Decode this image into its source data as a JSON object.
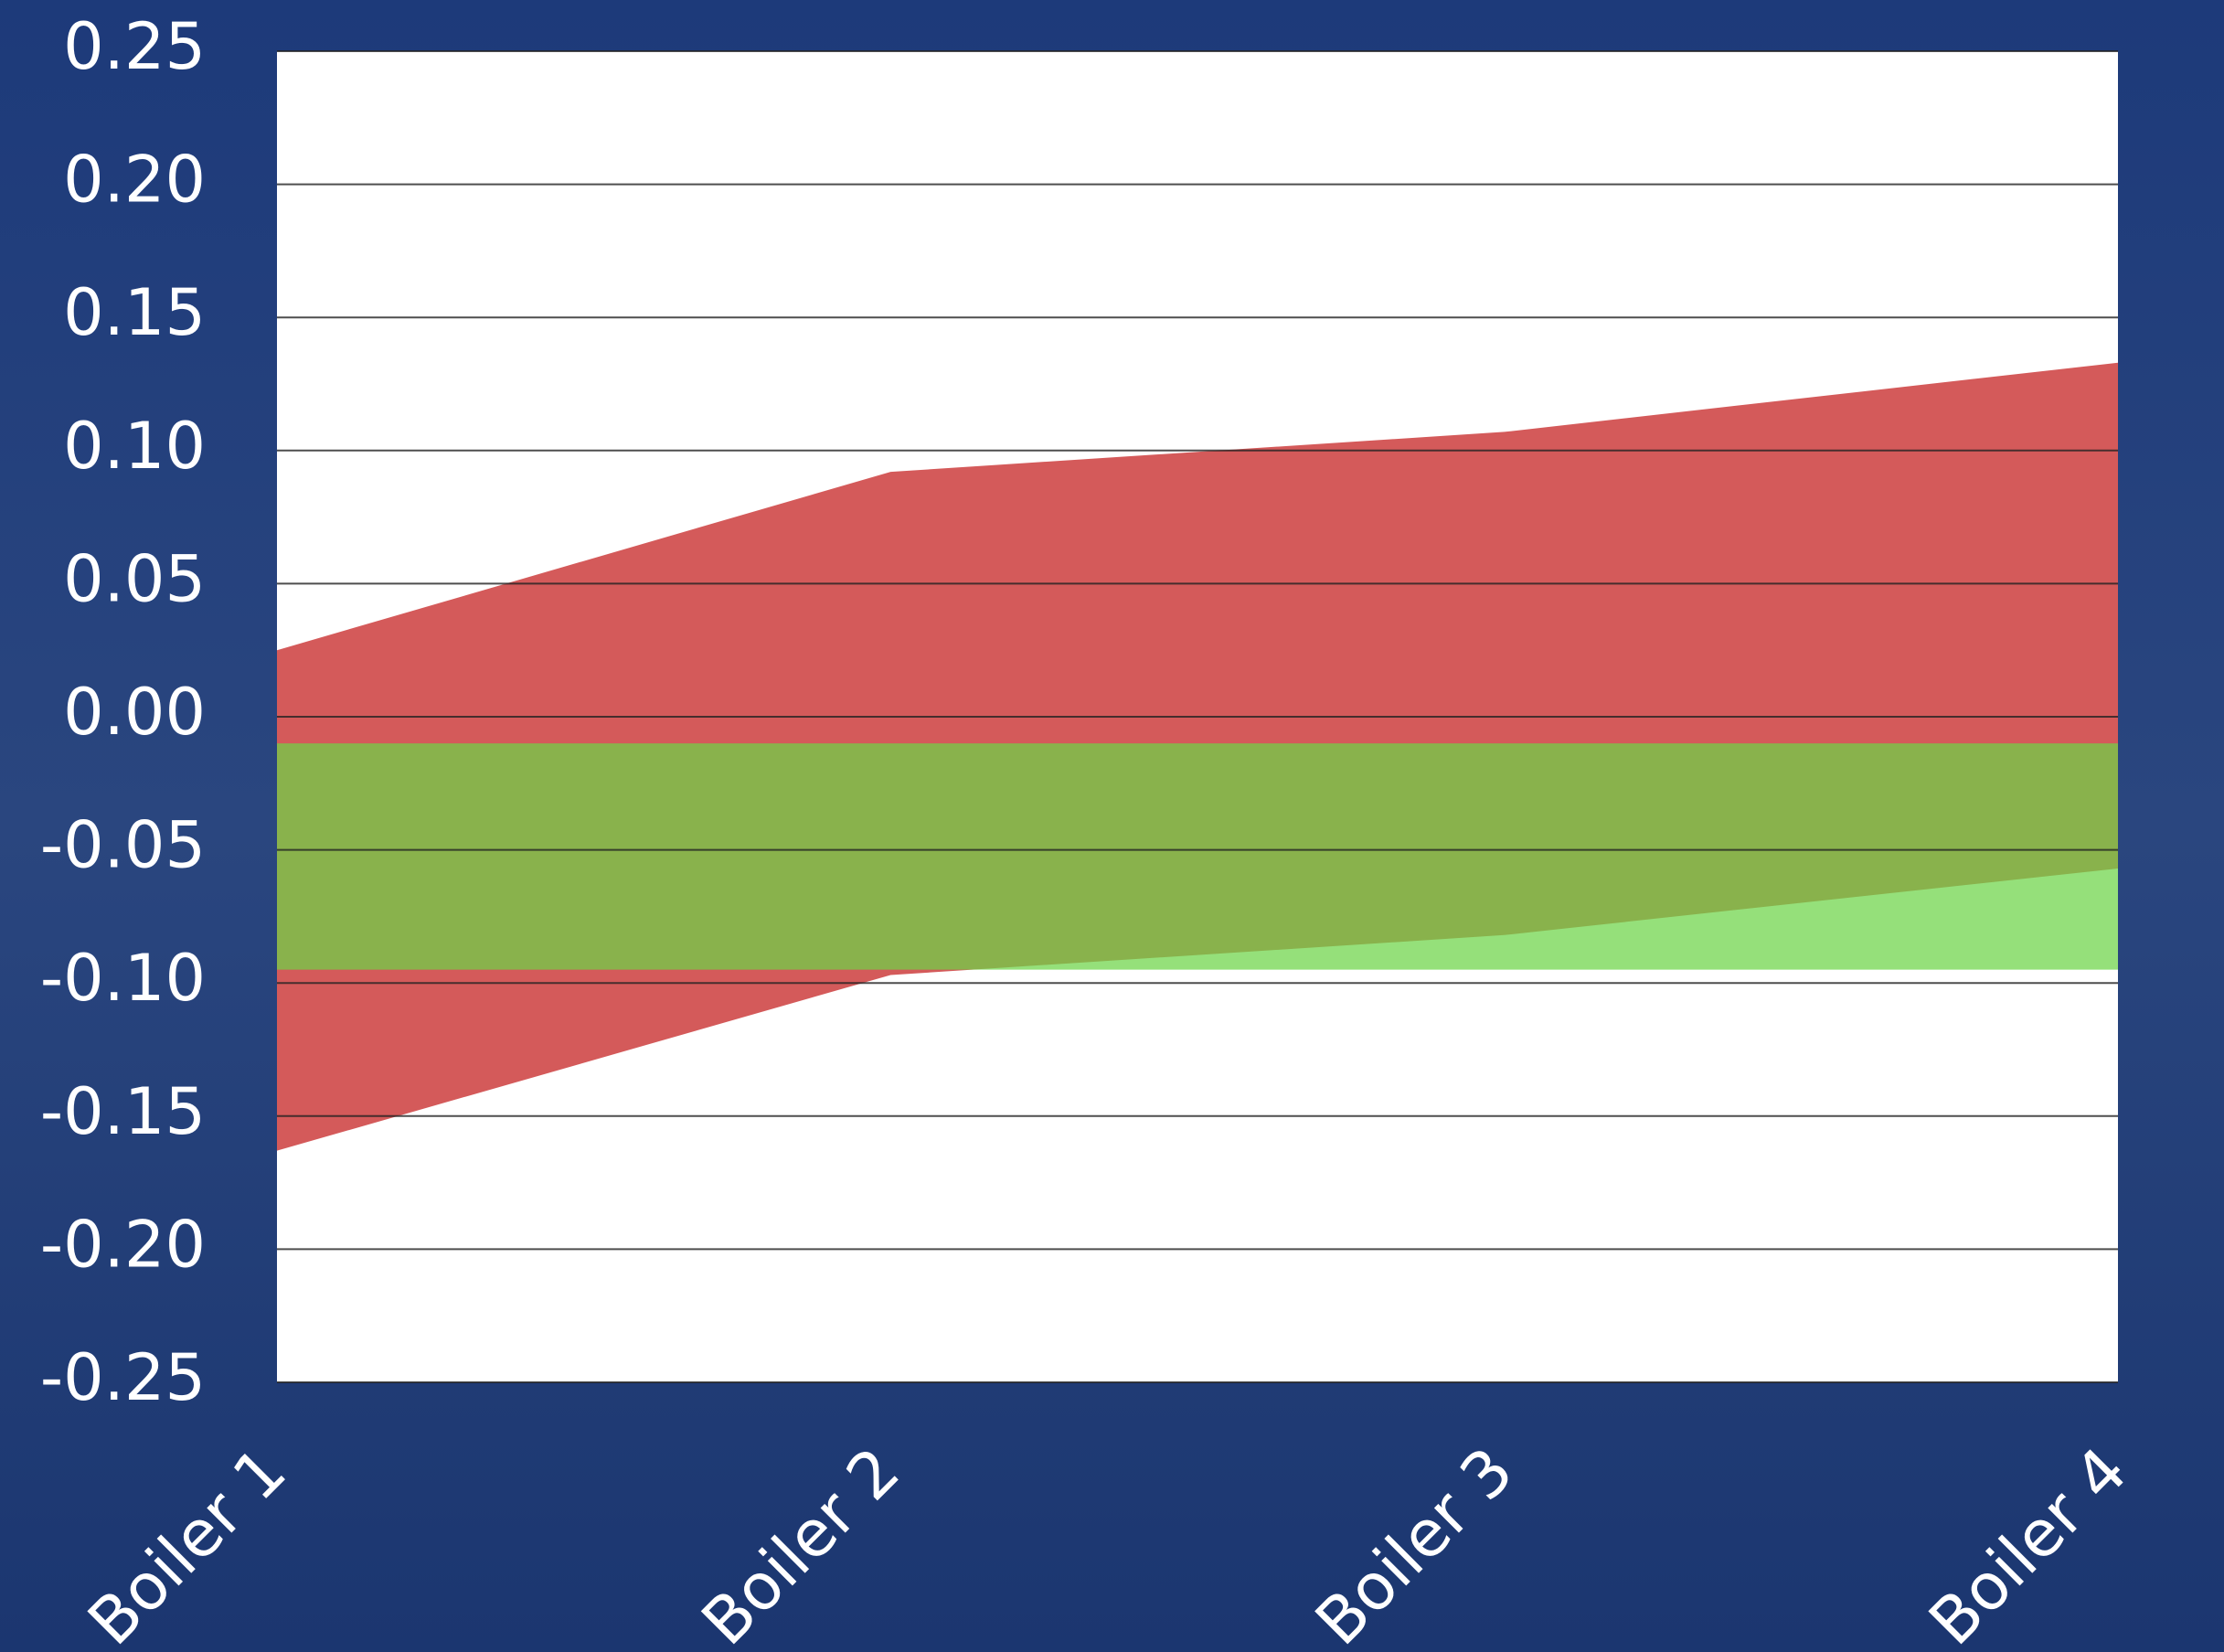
{
  "chart_data": {
    "type": "range-area",
    "categories": [
      "Boiler 1",
      "Boiler 2",
      "Boiler 3",
      "Boiler 4"
    ],
    "bands": [
      {
        "color": "#d45a5a",
        "upper": [
          0.025,
          0.092,
          0.107,
          0.133
        ],
        "lower": [
          -0.163,
          -0.097,
          -0.082,
          -0.057
        ]
      },
      {
        "color": "#6cd446",
        "upper": [
          -0.01,
          -0.01,
          -0.01,
          -0.01
        ],
        "lower": [
          -0.095,
          -0.095,
          -0.095,
          -0.095
        ]
      }
    ],
    "ylim": [
      -0.25,
      0.25
    ],
    "yticks": [
      {
        "value": -0.25,
        "label": "-0.25"
      },
      {
        "value": -0.2,
        "label": "-0.20"
      },
      {
        "value": -0.15,
        "label": "-0.15"
      },
      {
        "value": -0.1,
        "label": "-0.10"
      },
      {
        "value": -0.05,
        "label": "-0.05"
      },
      {
        "value": 0,
        "label": "0.00"
      },
      {
        "value": 0.05,
        "label": "0.05"
      },
      {
        "value": 0.1,
        "label": "0.10"
      },
      {
        "value": 0.15,
        "label": "0.15"
      },
      {
        "value": 0.2,
        "label": "0.20"
      },
      {
        "value": 0.25,
        "label": "0.25"
      }
    ],
    "grid": true
  }
}
